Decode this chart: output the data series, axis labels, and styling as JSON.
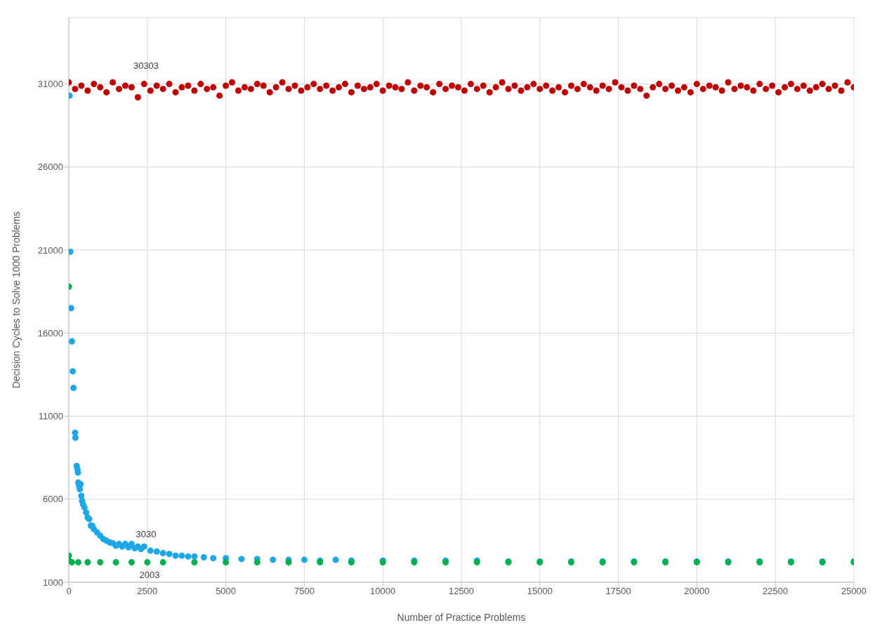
{
  "chart_data": {
    "type": "scatter",
    "xlabel": "Number of Practice Problems",
    "ylabel": "Decision Cycles to Solve 1000 Problems",
    "xlim": [
      0,
      25000
    ],
    "xticks": [
      0,
      2500,
      5000,
      7500,
      10000,
      12500,
      15000,
      17500,
      20000,
      22500,
      25000
    ],
    "ylim": [
      1000,
      35000
    ],
    "yticks": [
      1000,
      6000,
      11000,
      16000,
      21000,
      26000,
      31000
    ],
    "grid": true,
    "marker": "circle",
    "series": [
      {
        "color": "#c00000",
        "x": [
          0,
          200,
          400,
          600,
          800,
          1000,
          1200,
          1400,
          1600,
          1800,
          2000,
          2200,
          2400,
          2600,
          2800,
          3000,
          3200,
          3400,
          3600,
          3800,
          4000,
          4200,
          4400,
          4600,
          4800,
          5000,
          5200,
          5400,
          5600,
          5800,
          6000,
          6200,
          6400,
          6600,
          6800,
          7000,
          7200,
          7400,
          7600,
          7800,
          8000,
          8200,
          8400,
          8600,
          8800,
          9000,
          9200,
          9400,
          9600,
          9800,
          10000,
          10200,
          10400,
          10600,
          10800,
          11000,
          11200,
          11400,
          11600,
          11800,
          12000,
          12200,
          12400,
          12600,
          12800,
          13000,
          13200,
          13400,
          13600,
          13800,
          14000,
          14200,
          14400,
          14600,
          14800,
          15000,
          15200,
          15400,
          15600,
          15800,
          16000,
          16200,
          16400,
          16600,
          16800,
          17000,
          17200,
          17400,
          17600,
          17800,
          18000,
          18200,
          18400,
          18600,
          18800,
          19000,
          19200,
          19400,
          19600,
          19800,
          20000,
          20200,
          20400,
          20600,
          20800,
          21000,
          21200,
          21400,
          21600,
          21800,
          22000,
          22200,
          22400,
          22600,
          22800,
          23000,
          23200,
          23400,
          23600,
          23800,
          24000,
          24200,
          24400,
          24600,
          24800,
          25000
        ],
        "values": [
          31100,
          30700,
          30900,
          30600,
          31000,
          30800,
          30500,
          31100,
          30700,
          30900,
          30800,
          30200,
          31000,
          30600,
          30900,
          30700,
          31000,
          30500,
          30800,
          30900,
          30600,
          31000,
          30700,
          30800,
          30300,
          30900,
          31100,
          30600,
          30800,
          30700,
          31000,
          30900,
          30500,
          30800,
          31100,
          30700,
          30900,
          30600,
          30800,
          31000,
          30700,
          30900,
          30600,
          30800,
          31000,
          30500,
          30900,
          30700,
          30800,
          31000,
          30600,
          30900,
          30800,
          30700,
          31100,
          30600,
          30900,
          30800,
          30500,
          31000,
          30700,
          30900,
          30800,
          30600,
          31000,
          30700,
          30900,
          30500,
          30800,
          31100,
          30700,
          30900,
          30600,
          30800,
          31000,
          30700,
          30900,
          30600,
          30800,
          30500,
          30900,
          30700,
          31000,
          30800,
          30600,
          30900,
          30700,
          31100,
          30800,
          30600,
          30900,
          30700,
          30300,
          30800,
          31000,
          30700,
          30900,
          30600,
          30800,
          30500,
          31000,
          30700,
          30900,
          30800,
          30600,
          31100,
          30700,
          30900,
          30800,
          30600,
          31000,
          30700,
          30900,
          30500,
          30800,
          31000,
          30700,
          30900,
          30600,
          30800,
          31000,
          30700,
          30900,
          30600,
          31100,
          30800
        ]
      },
      {
        "color": "#1ea7e6",
        "x": [
          25,
          50,
          75,
          100,
          125,
          150,
          200,
          210,
          250,
          275,
          290,
          300,
          325,
          350,
          375,
          400,
          425,
          450,
          500,
          550,
          600,
          650,
          700,
          750,
          800,
          900,
          1000,
          1100,
          1200,
          1300,
          1400,
          1500,
          1600,
          1700,
          1800,
          1900,
          2000,
          2100,
          2200,
          2300,
          2400,
          2600,
          2800,
          3000,
          3200,
          3400,
          3600,
          3800,
          4000,
          4300,
          4600,
          5000,
          5500,
          6000,
          6500,
          7000,
          7500,
          8000,
          8500,
          9000,
          10000,
          11000,
          12000,
          13000,
          14000,
          15000,
          16000,
          17000,
          18000,
          19000,
          20000,
          21000,
          22000,
          23000,
          24000,
          25000
        ],
        "values": [
          30300,
          20900,
          17500,
          15500,
          13700,
          12700,
          10000,
          9700,
          8000,
          7800,
          7600,
          7000,
          6800,
          6600,
          6900,
          6200,
          5900,
          5700,
          5500,
          5200,
          4900,
          4800,
          4400,
          4400,
          4200,
          4000,
          3800,
          3600,
          3500,
          3400,
          3350,
          3200,
          3300,
          3150,
          3300,
          3100,
          3300,
          3050,
          3150,
          3000,
          3150,
          2900,
          2850,
          2750,
          2700,
          2600,
          2600,
          2550,
          2550,
          2500,
          2450,
          2450,
          2400,
          2400,
          2350,
          2350,
          2350,
          2300,
          2350,
          2300,
          2300,
          2300,
          2300,
          2300,
          2250,
          2250,
          2250,
          2250,
          2250,
          2250,
          2250,
          2250,
          2250,
          2250,
          2250,
          2250
        ]
      },
      {
        "color": "#00b050",
        "x": [
          0,
          0,
          10,
          100,
          300,
          600,
          1000,
          1500,
          2000,
          2500,
          3000,
          4000,
          5000,
          6000,
          7000,
          8000,
          9000,
          10000,
          11000,
          12000,
          13000,
          14000,
          15000,
          16000,
          17000,
          18000,
          19000,
          20000,
          21000,
          22000,
          23000,
          24000,
          25000
        ],
        "values": [
          18800,
          2600,
          2300,
          2200,
          2200,
          2200,
          2200,
          2200,
          2200,
          2200,
          2200,
          2200,
          2200,
          2200,
          2200,
          2200,
          2200,
          2200,
          2200,
          2200,
          2200,
          2200,
          2200,
          2200,
          2200,
          2200,
          2200,
          2200,
          2200,
          2200,
          2200,
          2200,
          2200
        ]
      }
    ],
    "annotations": [
      "30303",
      "3030",
      "2003"
    ]
  }
}
